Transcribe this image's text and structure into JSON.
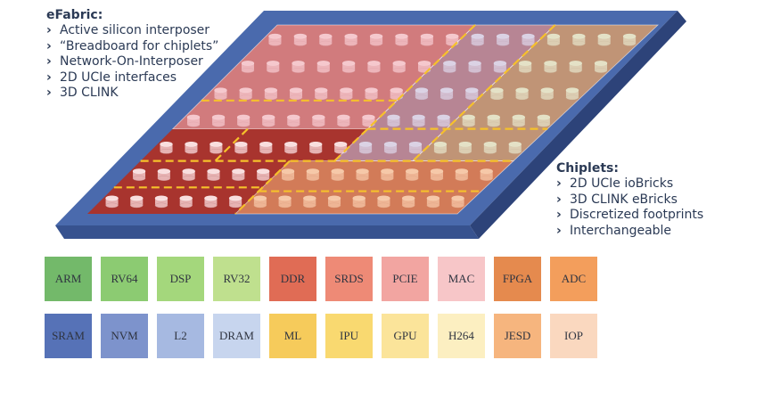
{
  "efabric": {
    "title": "eFabric:",
    "items": [
      "Active silicon interposer",
      "“Breadboard for chiplets”",
      "Network-On-Interposer",
      "2D UCIe interfaces",
      "3D CLINK"
    ]
  },
  "chiplets": {
    "title": "Chiplets:",
    "items": [
      "2D UCIe ioBricks",
      "3D CLINK eBricks",
      "Discretized footprints",
      "Interchangeable"
    ]
  },
  "tiles": {
    "row1": [
      {
        "label": "ARM",
        "color": "#73b96a"
      },
      {
        "label": "RV64",
        "color": "#8ccb72"
      },
      {
        "label": "DSP",
        "color": "#a4d77c"
      },
      {
        "label": "RV32",
        "color": "#bfe08e"
      },
      {
        "label": "DDR",
        "color": "#e06c55"
      },
      {
        "label": "SRDS",
        "color": "#ee8a76"
      },
      {
        "label": "PCIE",
        "color": "#f2a5a1"
      },
      {
        "label": "MAC",
        "color": "#f7c6c8"
      },
      {
        "label": "FPGA",
        "color": "#e58a4e"
      },
      {
        "label": "ADC",
        "color": "#f39e5c"
      }
    ],
    "row2": [
      {
        "label": "SRAM",
        "color": "#5672b7"
      },
      {
        "label": "NVM",
        "color": "#7d93cc"
      },
      {
        "label": "L2",
        "color": "#a6b9e1"
      },
      {
        "label": "DRAM",
        "color": "#c7d5ee"
      },
      {
        "label": "ML",
        "color": "#f6cb5b"
      },
      {
        "label": "IPU",
        "color": "#f9d970"
      },
      {
        "label": "GPU",
        "color": "#fbe49a"
      },
      {
        "label": "H264",
        "color": "#fcefc1"
      },
      {
        "label": "JESD",
        "color": "#f6b57e"
      },
      {
        "label": "IOP",
        "color": "#fad8bf"
      }
    ]
  },
  "colors": {
    "board_top": "#4a6aad",
    "board_side": "#2d4379",
    "board_front": "#37528f",
    "interposer": "#a8342e",
    "yellow_line": "#f6c12b",
    "bump_top": "#f9dede",
    "bump_side": "#e7b3b3",
    "overlay_pink": "#f3b6bf",
    "overlay_blue": "#c2c8ea",
    "overlay_green": "#d4e4b3",
    "overlay_orange": "#f4b67c"
  }
}
